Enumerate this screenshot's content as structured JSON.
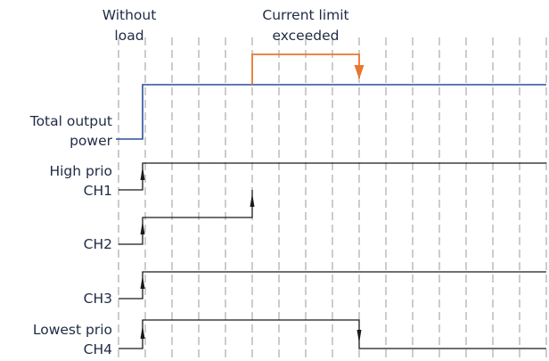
{
  "annotations": {
    "without_load": [
      "Without",
      "load"
    ],
    "current_limit": [
      "Current limit",
      "exceeded"
    ]
  },
  "signals": [
    {
      "key": "total",
      "label": [
        "Total output",
        "power"
      ]
    },
    {
      "key": "ch1",
      "label": [
        "High prio",
        "CH1"
      ]
    },
    {
      "key": "ch2",
      "label": [
        "CH2"
      ]
    },
    {
      "key": "ch3",
      "label": [
        "CH3"
      ]
    },
    {
      "key": "ch4",
      "label": [
        "Lowest prio",
        "CH4"
      ]
    }
  ],
  "colors": {
    "total_power": "#2b4f9c",
    "current_limit": "#e8772e",
    "channel": "#1a1a1a",
    "grid": "#9a9a9a",
    "text": "#1f2a44"
  }
}
